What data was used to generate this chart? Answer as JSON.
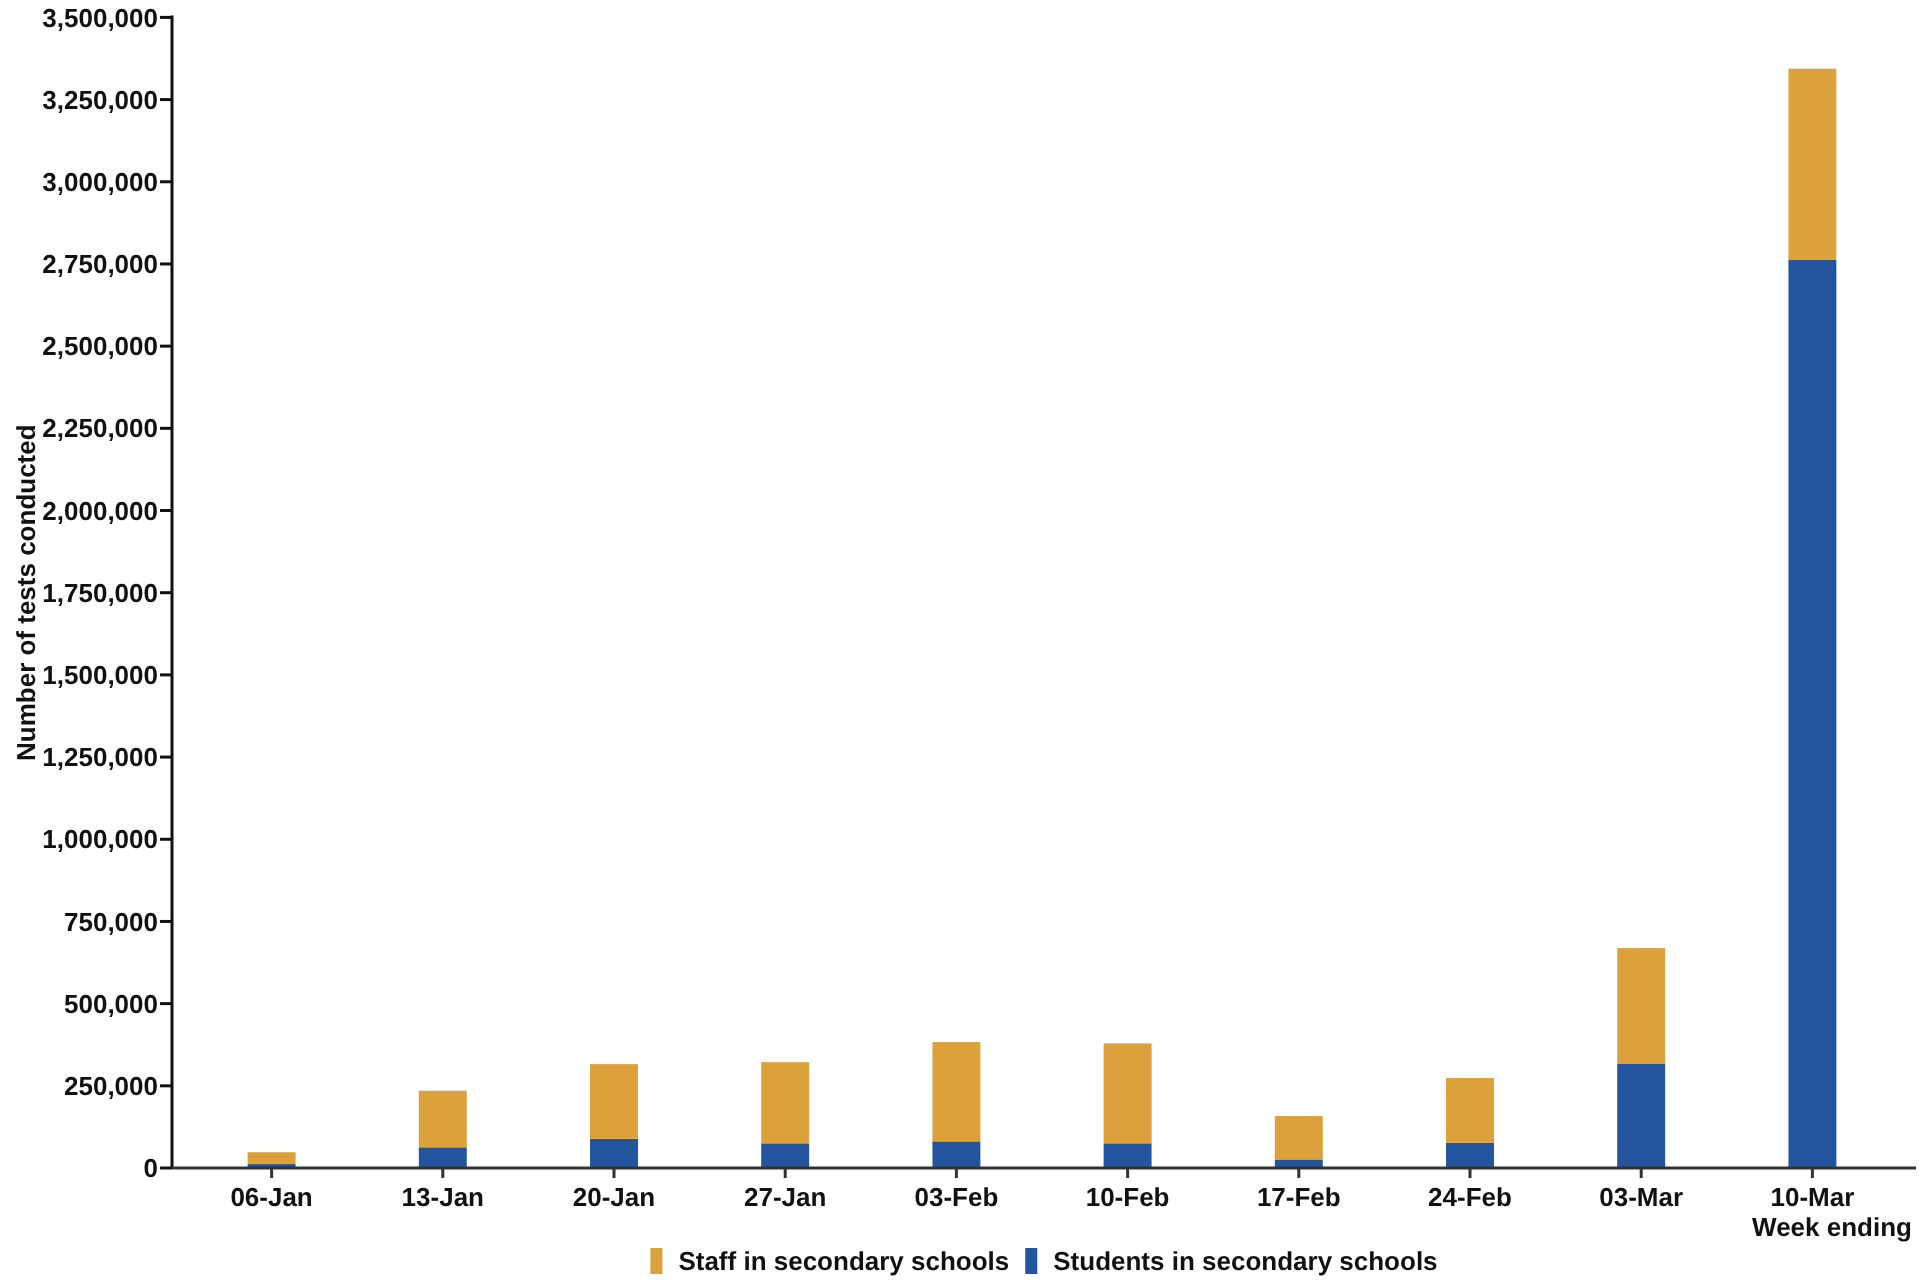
{
  "chart_data": {
    "type": "bar",
    "stacked": true,
    "categories": [
      "06-Jan",
      "13-Jan",
      "20-Jan",
      "27-Jan",
      "03-Feb",
      "10-Feb",
      "17-Feb",
      "24-Feb",
      "03-Mar",
      "10-Mar"
    ],
    "xlabel": "Week ending",
    "ylabel": "Number of tests conducted",
    "series": [
      {
        "name": "Students in secondary schools",
        "color": "#22559d",
        "values": [
          12000,
          63000,
          89000,
          75000,
          81000,
          75000,
          26000,
          77000,
          318000,
          2762000
        ]
      },
      {
        "name": "Staff in secondary schools",
        "color": "#dca13a",
        "values": [
          36000,
          172000,
          227000,
          247000,
          302000,
          304000,
          132000,
          197000,
          351000,
          582000
        ]
      }
    ],
    "ylim": [
      0,
      3500000
    ],
    "yticks": [
      {
        "value": 0,
        "label": "0"
      },
      {
        "value": 250000,
        "label": "250,000"
      },
      {
        "value": 500000,
        "label": "500,000"
      },
      {
        "value": 750000,
        "label": "750,000"
      },
      {
        "value": 1000000,
        "label": "1,000,000"
      },
      {
        "value": 1250000,
        "label": "1,250,000"
      },
      {
        "value": 1500000,
        "label": "1,500,000"
      },
      {
        "value": 1750000,
        "label": "1,750,000"
      },
      {
        "value": 2000000,
        "label": "2,000,000"
      },
      {
        "value": 2250000,
        "label": "2,250,000"
      },
      {
        "value": 2500000,
        "label": "2,500,000"
      },
      {
        "value": 2750000,
        "label": "2,750,000"
      },
      {
        "value": 3000000,
        "label": "3,000,000"
      },
      {
        "value": 3250000,
        "label": "3,250,000"
      },
      {
        "value": 3500000,
        "label": "3,500,000"
      }
    ],
    "legend": "bottom"
  }
}
